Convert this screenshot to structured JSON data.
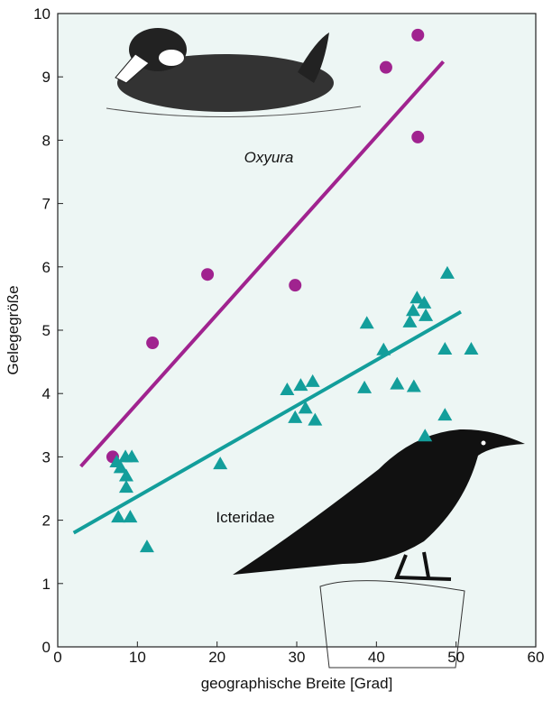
{
  "chart_data": {
    "type": "scatter",
    "xlabel": "geographische Breite [Grad]",
    "ylabel": "Gelegegröße",
    "annotations": [
      "Oxyura",
      "Icteridae"
    ],
    "xlim": [
      0,
      60
    ],
    "xticks": [
      0,
      10,
      20,
      30,
      40,
      50,
      60
    ],
    "ylim": [
      0,
      10
    ],
    "yticks": [
      0,
      1,
      2,
      3,
      4,
      5,
      6,
      7,
      8,
      9,
      10
    ],
    "series": [
      {
        "name": "Oxyura",
        "color": "#a0238f",
        "marker": "circle",
        "x": [
          6.9,
          11.9,
          18.8,
          29.8,
          41.2,
          45.2,
          45.2
        ],
        "values": [
          3.0,
          4.8,
          5.88,
          5.71,
          9.15,
          9.66,
          8.05
        ],
        "trend": {
          "x": [
            2.9,
            48.4
          ],
          "values": [
            2.85,
            9.24
          ]
        }
      },
      {
        "name": "Icteridae",
        "color": "#139e9b",
        "marker": "triangle",
        "x": [
          7.4,
          7.9,
          8.5,
          9.3,
          8.6,
          8.6,
          7.6,
          9.1,
          11.2,
          20.4,
          28.8,
          30.5,
          32.0,
          29.8,
          31.1,
          32.3,
          38.5,
          38.8,
          40.9,
          42.6,
          44.7,
          44.2,
          44.6,
          45.1,
          46.0,
          46.2,
          46.1,
          48.6,
          48.6,
          48.9,
          51.9
        ],
        "values": [
          2.92,
          2.83,
          3.0,
          3.0,
          2.7,
          2.52,
          2.05,
          2.05,
          1.58,
          2.89,
          4.06,
          4.13,
          4.19,
          3.62,
          3.77,
          3.58,
          4.09,
          5.11,
          4.69,
          4.15,
          4.11,
          5.13,
          5.31,
          5.51,
          5.43,
          5.23,
          3.33,
          3.66,
          4.7,
          5.9,
          4.7
        ],
        "trend": {
          "x": [
            2.0,
            50.6
          ],
          "values": [
            1.8,
            5.29
          ]
        }
      }
    ]
  }
}
